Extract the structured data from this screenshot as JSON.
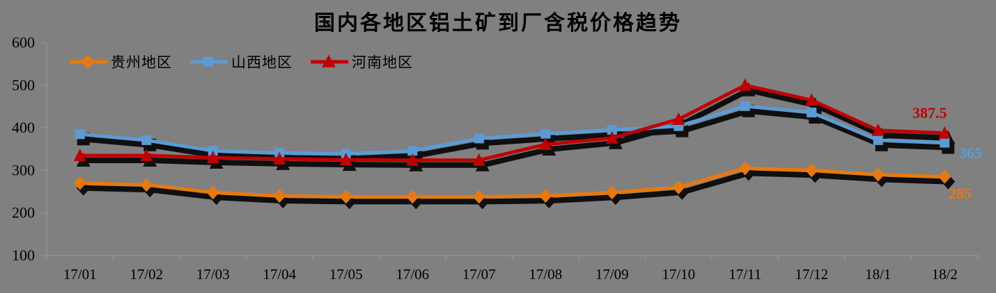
{
  "chart_data": {
    "type": "line",
    "title": "国内各地区铝土矿到厂含税价格趋势",
    "categories": [
      "17/01",
      "17/02",
      "17/03",
      "17/04",
      "17/05",
      "17/06",
      "17/07",
      "17/08",
      "17/09",
      "17/10",
      "17/11",
      "17/12",
      "18/1",
      "18/2"
    ],
    "series": [
      {
        "name": "贵州地区",
        "color": "#E8790F",
        "marker": "diamond",
        "values": [
          270,
          266,
          248,
          240,
          238,
          238,
          238,
          240,
          248,
          260,
          305,
          300,
          290,
          285
        ],
        "end_label": "285"
      },
      {
        "name": "山西地区",
        "color": "#5B9BD5",
        "marker": "square",
        "values": [
          385,
          371,
          346,
          341,
          339,
          346,
          375,
          386,
          395,
          404,
          451,
          436,
          371,
          365
        ],
        "end_label": "365"
      },
      {
        "name": "河南地区",
        "color": "#C00000",
        "marker": "triangle",
        "values": [
          335,
          335,
          330,
          327,
          325,
          324,
          324,
          361,
          376,
          420,
          500,
          465,
          394,
          387.5
        ],
        "end_label": "387.5"
      }
    ],
    "ylim": [
      100,
      600
    ],
    "y_ticks": [
      600,
      500,
      400,
      300,
      200,
      100
    ],
    "grid": false,
    "legend_position": "top-left",
    "background": "#808080",
    "axis_color": "#959595",
    "label_color": "#000000",
    "shadow": true
  }
}
